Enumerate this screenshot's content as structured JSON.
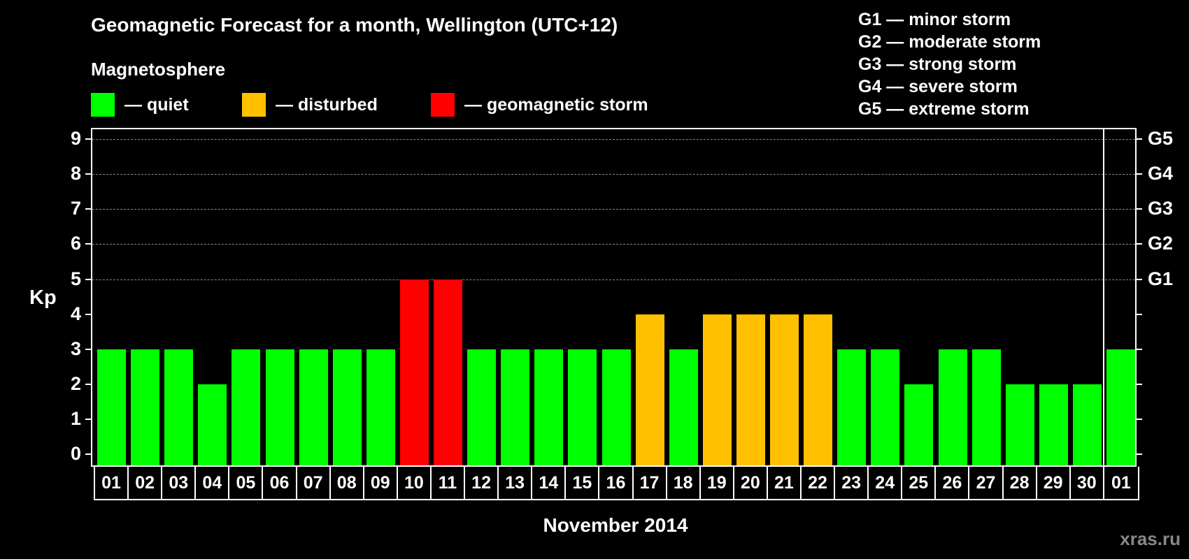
{
  "header": {
    "title": "Geomagnetic Forecast for a month, Wellington (UTC+12)",
    "subtitle": "Magnetosphere"
  },
  "legend": [
    {
      "label": "— quiet",
      "color": "#00ff00"
    },
    {
      "label": "— disturbed",
      "color": "#ffc000"
    },
    {
      "label": "— geomagnetic storm",
      "color": "#ff0000"
    }
  ],
  "g_scale": [
    "G1 — minor storm",
    "G2 — moderate storm",
    "G3 — strong storm",
    "G4 — severe storm",
    "G5 — extreme storm"
  ],
  "watermark": "xras.ru",
  "chart_data": {
    "type": "bar",
    "title": "Geomagnetic Forecast for a month, Wellington (UTC+12)",
    "xlabel": "November 2014",
    "ylabel": "Kp",
    "ylim": [
      0,
      9
    ],
    "yticks": [
      0,
      1,
      2,
      3,
      4,
      5,
      6,
      7,
      8,
      9
    ],
    "right_axis_labels": [
      {
        "kp": 5,
        "label": "G1"
      },
      {
        "kp": 6,
        "label": "G2"
      },
      {
        "kp": 7,
        "label": "G3"
      },
      {
        "kp": 8,
        "label": "G4"
      },
      {
        "kp": 9,
        "label": "G5"
      }
    ],
    "grid": "dashed horizontal at Kp 5-9",
    "categories": [
      "01",
      "02",
      "03",
      "04",
      "05",
      "06",
      "07",
      "08",
      "09",
      "10",
      "11",
      "12",
      "13",
      "14",
      "15",
      "16",
      "17",
      "18",
      "19",
      "20",
      "21",
      "22",
      "23",
      "24",
      "25",
      "26",
      "27",
      "28",
      "29",
      "30",
      "01"
    ],
    "values": [
      3,
      3,
      3,
      2,
      3,
      3,
      3,
      3,
      3,
      5,
      5,
      3,
      3,
      3,
      3,
      3,
      4,
      3,
      4,
      4,
      4,
      4,
      3,
      3,
      2,
      3,
      3,
      2,
      2,
      2,
      3
    ],
    "status": [
      "quiet",
      "quiet",
      "quiet",
      "quiet",
      "quiet",
      "quiet",
      "quiet",
      "quiet",
      "quiet",
      "storm",
      "storm",
      "quiet",
      "quiet",
      "quiet",
      "quiet",
      "quiet",
      "disturbed",
      "quiet",
      "disturbed",
      "disturbed",
      "disturbed",
      "disturbed",
      "quiet",
      "quiet",
      "quiet",
      "quiet",
      "quiet",
      "quiet",
      "quiet",
      "quiet",
      "quiet"
    ],
    "colors": {
      "quiet": "#00ff00",
      "disturbed": "#ffc000",
      "storm": "#ff0000"
    }
  }
}
